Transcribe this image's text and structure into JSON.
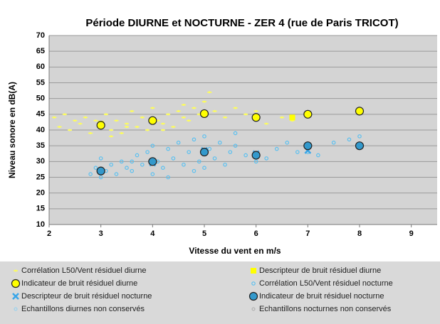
{
  "chart_data": {
    "type": "scatter",
    "title": "Période DIURNE et NOCTURNE - ZER 4 (rue de Paris TRICOT)",
    "x_label": "Vitesse du vent en m/s",
    "y_label": "Niveau sonore en dB(A)",
    "xlim": [
      2,
      9.5
    ],
    "xticks": [
      2,
      3,
      4,
      5,
      6,
      7,
      8,
      9
    ],
    "ylim": [
      10,
      70
    ],
    "yticks": [
      10,
      15,
      20,
      25,
      30,
      35,
      40,
      45,
      50,
      55,
      60,
      65,
      70
    ],
    "grid": true,
    "legend": "bottom",
    "series": [
      {
        "name": "Corrélation L50/Vent résiduel diurne",
        "color": "#ffff55",
        "marker": "dash",
        "x": [
          2.1,
          2.2,
          2.3,
          2.4,
          2.5,
          2.6,
          2.7,
          2.8,
          2.9,
          3.0,
          3.1,
          3.2,
          3.3,
          3.4,
          3.5,
          3.6,
          3.7,
          3.8,
          3.9,
          4.0,
          4.1,
          4.2,
          4.3,
          4.4,
          4.5,
          4.6,
          4.7,
          4.8,
          4.9,
          5.0,
          5.2,
          5.4,
          5.6,
          5.8,
          6.0,
          6.2,
          6.5,
          6.7,
          3.2,
          3.5,
          4.2,
          4.6,
          5.1
        ],
        "values": [
          44,
          41,
          45,
          40,
          43,
          42,
          44,
          39,
          43,
          41,
          45,
          40,
          43,
          39,
          42,
          46,
          41,
          44,
          40,
          47,
          43,
          42,
          45,
          41,
          46,
          44,
          43,
          47,
          45,
          49,
          46,
          44,
          47,
          45,
          46,
          42,
          44,
          43,
          38,
          41,
          40,
          48,
          52
        ]
      },
      {
        "name": "Descripteur de bruit résiduel diurne",
        "color": "#ffff00",
        "marker": "square",
        "x": [
          3,
          4,
          5,
          6,
          6.7
        ],
        "values": [
          42,
          43,
          45,
          44,
          44
        ]
      },
      {
        "name": "Indicateur de bruit résiduel diurne",
        "color": "#ffff00",
        "marker": "circle",
        "x": [
          3,
          4,
          5,
          6,
          7,
          8
        ],
        "values": [
          41.5,
          43,
          45.2,
          44,
          45,
          46
        ]
      },
      {
        "name": "Corrélation L50/Vent résiduel nocturne",
        "color": "#5bc0f0",
        "marker": "ring",
        "x": [
          2.8,
          2.9,
          3.0,
          3.0,
          3.1,
          3.2,
          3.3,
          3.4,
          3.5,
          3.6,
          3.7,
          3.8,
          3.9,
          4.0,
          4.0,
          4.1,
          4.2,
          4.3,
          4.4,
          4.5,
          4.6,
          4.7,
          4.8,
          4.9,
          5.0,
          5.0,
          5.1,
          5.2,
          5.3,
          5.4,
          5.5,
          5.6,
          5.8,
          6.0,
          6.2,
          6.4,
          6.6,
          6.8,
          7.0,
          7.2,
          7.5,
          7.8,
          8.0,
          4.3,
          4.8,
          3.6,
          5.6
        ],
        "values": [
          26,
          28,
          25,
          31,
          27,
          29,
          26,
          30,
          28,
          27,
          32,
          29,
          33,
          26,
          35,
          30,
          28,
          34,
          31,
          36,
          29,
          33,
          37,
          30,
          28,
          38,
          34,
          31,
          36,
          29,
          33,
          35,
          32,
          30,
          31,
          34,
          36,
          33,
          33,
          32,
          36,
          37,
          38,
          25,
          27,
          30,
          39
        ]
      },
      {
        "name": "Descripteur de bruit résiduel nocturne",
        "color": "#3aa6e8",
        "marker": "cross",
        "x": [
          3,
          4,
          5,
          6,
          7,
          8
        ],
        "values": [
          27,
          29.5,
          33.5,
          32.5,
          33.5,
          35
        ]
      },
      {
        "name": "Indicateur de bruit résiduel nocturne",
        "color": "#3399cc",
        "marker": "circle",
        "x": [
          3,
          4,
          5,
          6,
          7,
          8
        ],
        "values": [
          27,
          30,
          33,
          32,
          35,
          35
        ]
      },
      {
        "name": "Echantillons diurnes non conservés",
        "color": "#8fd0f2",
        "marker": "dot",
        "x": [],
        "values": []
      },
      {
        "name": "Echantillons nocturnes non conservés",
        "color": "#aaaaaa",
        "marker": "dot",
        "x": [],
        "values": []
      }
    ]
  }
}
